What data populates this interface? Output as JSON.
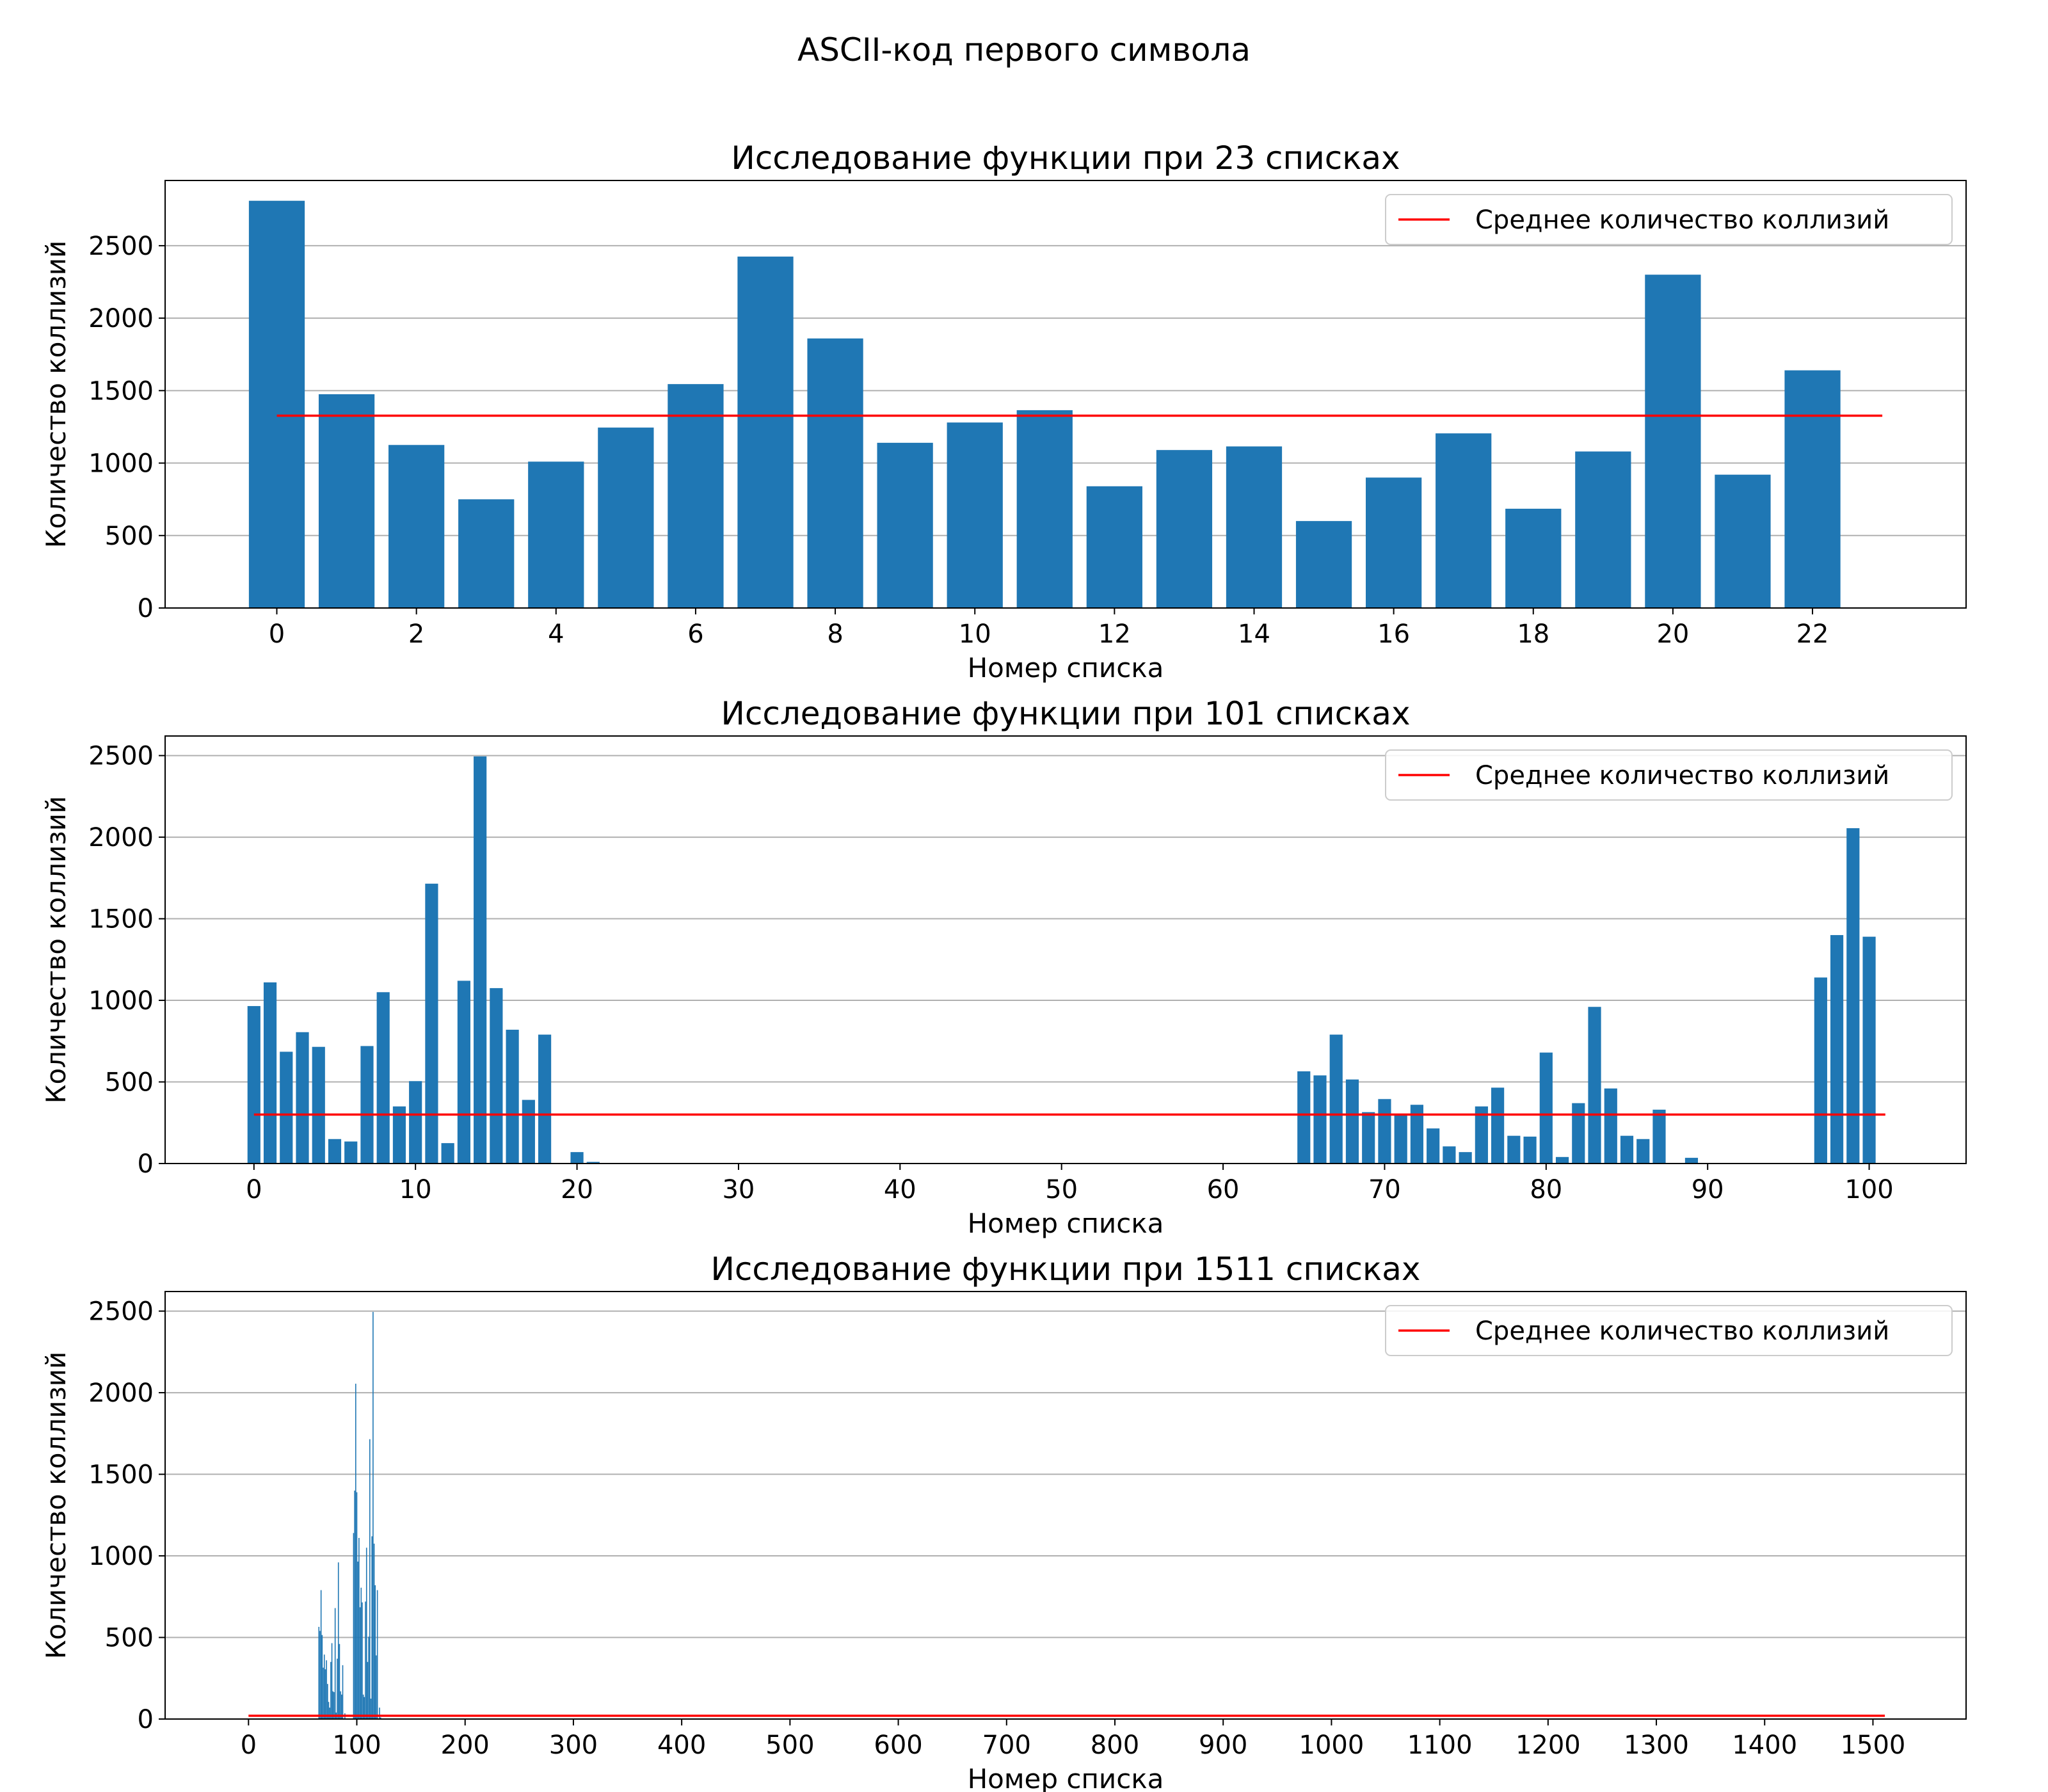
{
  "figure": {
    "suptitle": "ASCII-код первого символа"
  },
  "chart_data": [
    {
      "type": "bar",
      "title": "Исследование функции при 23 списках",
      "xlabel": "Номер списка",
      "ylabel": "Количество коллизий",
      "xlim": [
        -1.6,
        24.2
      ],
      "ylim": [
        0,
        2950
      ],
      "xticks": [
        0,
        2,
        4,
        6,
        8,
        10,
        12,
        14,
        16,
        18,
        20,
        22
      ],
      "yticks": [
        0,
        500,
        1000,
        1500,
        2000,
        2500
      ],
      "grid": "y",
      "legend": {
        "position": "top-right",
        "entries": [
          "Среднее количество коллизий"
        ]
      },
      "bar_color": "#1f77b4",
      "bar_width": 0.8,
      "x": [
        0,
        1,
        2,
        3,
        4,
        5,
        6,
        7,
        8,
        9,
        10,
        11,
        12,
        13,
        14,
        15,
        16,
        17,
        18,
        19,
        20,
        21,
        22
      ],
      "values": [
        2810,
        1475,
        1125,
        750,
        1010,
        1245,
        1545,
        2425,
        1860,
        1140,
        1280,
        1365,
        840,
        1090,
        1115,
        600,
        900,
        1205,
        685,
        1080,
        2300,
        920,
        1640
      ],
      "mean_line": {
        "name": "Среднее количество коллизий",
        "value": 1327,
        "x_range": [
          0,
          23
        ],
        "color": "#ff0000"
      }
    },
    {
      "type": "bar",
      "title": "Исследование функции при 101 списках",
      "xlabel": "Номер списка",
      "ylabel": "Количество коллизий",
      "xlim": [
        -5.5,
        106
      ],
      "ylim": [
        0,
        2620
      ],
      "xticks": [
        0,
        10,
        20,
        30,
        40,
        50,
        60,
        70,
        80,
        90,
        100
      ],
      "yticks": [
        0,
        500,
        1000,
        1500,
        2000,
        2500
      ],
      "grid": "y",
      "legend": {
        "position": "top-right",
        "entries": [
          "Среднее количество коллизий"
        ]
      },
      "bar_color": "#1f77b4",
      "bar_width": 0.8,
      "x": [
        0,
        1,
        2,
        3,
        4,
        5,
        6,
        7,
        8,
        9,
        10,
        11,
        12,
        13,
        14,
        15,
        16,
        17,
        18,
        20,
        21,
        65,
        66,
        67,
        68,
        69,
        70,
        71,
        72,
        73,
        74,
        75,
        76,
        77,
        78,
        79,
        80,
        81,
        82,
        83,
        84,
        85,
        86,
        87,
        89,
        97,
        98,
        99,
        100
      ],
      "values": [
        965,
        1110,
        685,
        805,
        715,
        150,
        135,
        720,
        1050,
        350,
        505,
        1715,
        125,
        1120,
        2495,
        1075,
        820,
        390,
        790,
        70,
        10,
        565,
        540,
        790,
        515,
        315,
        395,
        305,
        360,
        215,
        105,
        70,
        350,
        465,
        170,
        165,
        680,
        40,
        370,
        960,
        460,
        170,
        150,
        330,
        35,
        1140,
        1400,
        2055,
        1390
      ],
      "mean_line": {
        "name": "Среднее количество коллизий",
        "value": 300,
        "x_range": [
          0,
          101
        ],
        "color": "#ff0000"
      }
    },
    {
      "type": "bar",
      "title": "Исследование функции при 1511 списках",
      "xlabel": "Номер списка",
      "ylabel": "Количество коллизий",
      "xlim": [
        -77,
        1586
      ],
      "ylim": [
        0,
        2620
      ],
      "xticks": [
        0,
        100,
        200,
        300,
        400,
        500,
        600,
        700,
        800,
        900,
        1000,
        1100,
        1200,
        1300,
        1400,
        1500
      ],
      "yticks": [
        0,
        500,
        1000,
        1500,
        2000,
        2500
      ],
      "grid": "y",
      "legend": {
        "position": "top-right",
        "entries": [
          "Среднее количество коллизий"
        ]
      },
      "bar_color": "#1f77b4",
      "bar_width": 0.8,
      "x": [
        65,
        66,
        67,
        68,
        69,
        70,
        71,
        72,
        73,
        74,
        75,
        76,
        77,
        78,
        79,
        80,
        81,
        82,
        83,
        84,
        85,
        86,
        87,
        89,
        97,
        98,
        99,
        100,
        101,
        102,
        103,
        104,
        105,
        106,
        107,
        108,
        109,
        110,
        111,
        112,
        113,
        114,
        115,
        116,
        117,
        118,
        119,
        121,
        122
      ],
      "values": [
        565,
        540,
        790,
        515,
        315,
        395,
        305,
        360,
        215,
        105,
        70,
        350,
        465,
        170,
        165,
        680,
        40,
        370,
        960,
        460,
        170,
        150,
        330,
        35,
        1140,
        1400,
        2055,
        1390,
        965,
        1110,
        685,
        805,
        715,
        150,
        135,
        720,
        1050,
        350,
        505,
        1715,
        125,
        1120,
        2495,
        1075,
        820,
        390,
        790,
        70,
        10
      ],
      "mean_line": {
        "name": "Среднее количество коллизий",
        "value": 20,
        "x_range": [
          0,
          1511
        ],
        "color": "#ff0000"
      }
    }
  ]
}
